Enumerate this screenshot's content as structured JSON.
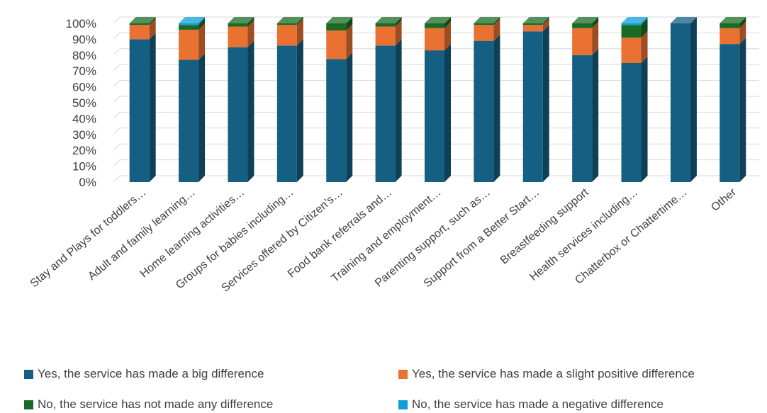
{
  "chart_data": {
    "type": "bar",
    "stacked": true,
    "percent_axis": true,
    "style": "3d",
    "categories": [
      "Stay and Plays for toddlers…",
      "Adult and family learning…",
      "Home learning activities…",
      "Groups for babies including…",
      "Services offered by Citizen’s…",
      "Food bank referrals and…",
      "Training and employment…",
      "Parenting support, such as…",
      "Support from a Better Start…",
      "Breastfeeding support",
      "Health services including…",
      "Chatterbox or Chattertime…",
      "Other"
    ],
    "series": [
      {
        "name": "Yes, the service has made a big difference",
        "color": "#156082",
        "values": [
          90,
          77,
          85,
          86,
          77.5,
          86,
          83,
          89,
          95,
          80,
          75,
          100,
          87
        ]
      },
      {
        "name": "Yes, the service has made a slight positive difference",
        "color": "#E97132",
        "values": [
          9,
          19,
          13,
          13,
          18,
          12,
          14,
          10,
          4,
          17,
          16,
          0,
          10
        ]
      },
      {
        "name": "No, the service has not made any difference",
        "color": "#196B24",
        "values": [
          1,
          3,
          2,
          1,
          4.5,
          2,
          3,
          1,
          1,
          3,
          8,
          0,
          3
        ]
      },
      {
        "name": "No, the service has made a negative difference",
        "color": "#0F9ED5",
        "values": [
          0,
          1,
          0,
          0,
          0,
          0,
          0,
          0,
          0,
          0,
          1,
          0,
          0
        ]
      }
    ],
    "yticks": [
      "0%",
      "10%",
      "20%",
      "30%",
      "40%",
      "50%",
      "60%",
      "70%",
      "80%",
      "90%",
      "100%"
    ],
    "ylim": [
      0,
      100
    ],
    "grid": true,
    "legend_position": "bottom"
  }
}
